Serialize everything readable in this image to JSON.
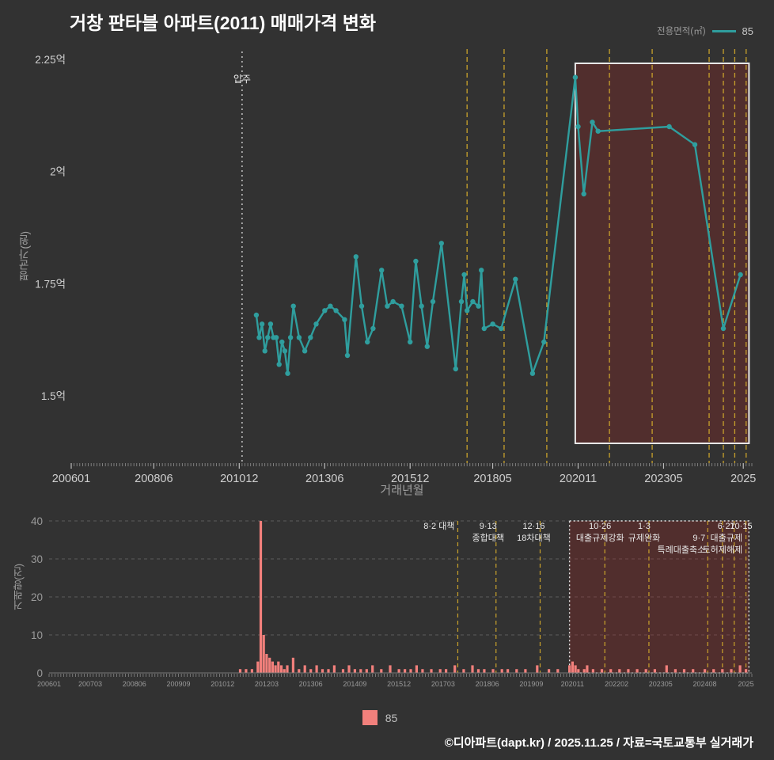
{
  "title": "거창 판타블 아파트(2011) 매매가격 변화",
  "legend": {
    "area_label": "전용면적(㎡)",
    "series": "85"
  },
  "footer": {
    "credit": "©디아파트(dapt.kr) / 2025.11.25 / 자료=국토교통부 실거래가"
  },
  "colors": {
    "background": "#323232",
    "accent_teal": "#2f9e9e",
    "bar_salmon": "#f2807c",
    "policy_line": "#c9a22b",
    "highlight_fill": "rgba(150,40,38,0.32)",
    "highlight_border": "#e8e8e8",
    "move_in_line": "#e0e0e0",
    "axis_text": "#cfcfcf",
    "grid": "#5c5c5c"
  },
  "chart_data": [
    {
      "type": "line",
      "title": "거창 판타블 아파트(2011) 매매가격 변화",
      "xlabel": "거래년월",
      "ylabel": "평균가(원)",
      "x_range_months": [
        "2006-01",
        "2025-12"
      ],
      "ylim": [
        1.35,
        2.28
      ],
      "grid": false,
      "legend_position": "top-right",
      "y_ticks": [
        {
          "label": "2.25억",
          "value": 2.25
        },
        {
          "label": "2억",
          "value": 2.0
        },
        {
          "label": "1.75억",
          "value": 1.75
        },
        {
          "label": "1.5억",
          "value": 1.5
        }
      ],
      "x_ticks": [
        {
          "label": "200601",
          "month": "2006-01"
        },
        {
          "label": "200806",
          "month": "2008-06"
        },
        {
          "label": "201012",
          "month": "2010-12"
        },
        {
          "label": "201306",
          "month": "2013-06"
        },
        {
          "label": "201512",
          "month": "2015-12"
        },
        {
          "label": "201805",
          "month": "2018-05"
        },
        {
          "label": "202011",
          "month": "2020-11"
        },
        {
          "label": "202305",
          "month": "2023-05"
        },
        {
          "label": "2025",
          "month": "2025-09"
        }
      ],
      "move_in_marker": {
        "month": "2011-01",
        "label": "입주"
      },
      "policy_lines": [
        "2017-08",
        "2018-09",
        "2019-12",
        "2021-10",
        "2023-01",
        "2024-09",
        "2025-02",
        "2025-06",
        "2025-10"
      ],
      "highlight_range": [
        "2020-10",
        "2025-11"
      ],
      "series": [
        {
          "name": "85",
          "color": "#2f9e9e",
          "points": [
            [
              "2011-06",
              1.68
            ],
            [
              "2011-07",
              1.63
            ],
            [
              "2011-08",
              1.66
            ],
            [
              "2011-09",
              1.6
            ],
            [
              "2011-10",
              1.63
            ],
            [
              "2011-11",
              1.66
            ],
            [
              "2011-12",
              1.63
            ],
            [
              "2012-01",
              1.63
            ],
            [
              "2012-02",
              1.57
            ],
            [
              "2012-03",
              1.62
            ],
            [
              "2012-04",
              1.6
            ],
            [
              "2012-05",
              1.55
            ],
            [
              "2012-06",
              1.63
            ],
            [
              "2012-07",
              1.7
            ],
            [
              "2012-09",
              1.63
            ],
            [
              "2012-11",
              1.6
            ],
            [
              "2013-01",
              1.63
            ],
            [
              "2013-03",
              1.66
            ],
            [
              "2013-06",
              1.69
            ],
            [
              "2013-08",
              1.7
            ],
            [
              "2013-10",
              1.69
            ],
            [
              "2014-01",
              1.67
            ],
            [
              "2014-02",
              1.59
            ],
            [
              "2014-05",
              1.81
            ],
            [
              "2014-07",
              1.7
            ],
            [
              "2014-09",
              1.62
            ],
            [
              "2014-11",
              1.65
            ],
            [
              "2015-02",
              1.78
            ],
            [
              "2015-04",
              1.7
            ],
            [
              "2015-06",
              1.71
            ],
            [
              "2015-09",
              1.7
            ],
            [
              "2015-12",
              1.62
            ],
            [
              "2016-02",
              1.8
            ],
            [
              "2016-04",
              1.7
            ],
            [
              "2016-06",
              1.61
            ],
            [
              "2016-08",
              1.71
            ],
            [
              "2016-11",
              1.84
            ],
            [
              "2017-04",
              1.56
            ],
            [
              "2017-06",
              1.71
            ],
            [
              "2017-07",
              1.77
            ],
            [
              "2017-08",
              1.69
            ],
            [
              "2017-10",
              1.71
            ],
            [
              "2017-12",
              1.7
            ],
            [
              "2018-01",
              1.78
            ],
            [
              "2018-02",
              1.65
            ],
            [
              "2018-05",
              1.66
            ],
            [
              "2018-08",
              1.65
            ],
            [
              "2019-01",
              1.76
            ],
            [
              "2019-07",
              1.55
            ],
            [
              "2019-11",
              1.62
            ],
            [
              "2020-10",
              2.21
            ],
            [
              "2020-11",
              2.1
            ],
            [
              "2021-01",
              1.95
            ],
            [
              "2021-04",
              2.11
            ],
            [
              "2021-06",
              2.09
            ],
            [
              "2023-07",
              2.1
            ],
            [
              "2024-04",
              2.06
            ],
            [
              "2025-02",
              1.65
            ],
            [
              "2025-08",
              1.77
            ]
          ]
        }
      ]
    },
    {
      "type": "bar",
      "xlabel": "",
      "ylabel": "거래량(건)",
      "ylim": [
        0,
        40
      ],
      "grid": true,
      "y_ticks": [
        0,
        10,
        20,
        30,
        40
      ],
      "x_ticks": [
        {
          "label": "200601",
          "month": "2006-01"
        },
        {
          "label": "200703",
          "month": "2007-03"
        },
        {
          "label": "200806",
          "month": "2008-06"
        },
        {
          "label": "200909",
          "month": "2009-09"
        },
        {
          "label": "201012",
          "month": "2010-12"
        },
        {
          "label": "201203",
          "month": "2012-03"
        },
        {
          "label": "201306",
          "month": "2013-06"
        },
        {
          "label": "201409",
          "month": "2014-09"
        },
        {
          "label": "201512",
          "month": "2015-12"
        },
        {
          "label": "201703",
          "month": "2017-03"
        },
        {
          "label": "201806",
          "month": "2018-06"
        },
        {
          "label": "201909",
          "month": "2019-09"
        },
        {
          "label": "202011",
          "month": "2020-11"
        },
        {
          "label": "202202",
          "month": "2022-02"
        },
        {
          "label": "202305",
          "month": "2023-05"
        },
        {
          "label": "202408",
          "month": "2024-08"
        },
        {
          "label": "2025",
          "month": "2025-10"
        }
      ],
      "policy_lines": [
        "2017-08",
        "2018-09",
        "2019-12",
        "2021-10",
        "2023-01",
        "2024-09",
        "2025-02",
        "2025-06",
        "2025-10"
      ],
      "highlight_range": [
        "2020-10",
        "2025-11"
      ],
      "annotations": [
        {
          "month": "2017-08",
          "anchor": "end",
          "dx": -4,
          "texts": [
            [
              0,
              "8·2 대책"
            ]
          ]
        },
        {
          "month": "2018-09",
          "anchor": "middle",
          "dx": -10,
          "texts": [
            [
              0,
              "9·13"
            ],
            [
              1,
              "종합대책"
            ]
          ]
        },
        {
          "month": "2019-12",
          "anchor": "middle",
          "dx": -8,
          "texts": [
            [
              0,
              "12·16"
            ],
            [
              1,
              "18차대책"
            ]
          ]
        },
        {
          "month": "2021-10",
          "anchor": "middle",
          "dx": -6,
          "texts": [
            [
              0,
              "10·26"
            ],
            [
              1,
              "대출규제강화"
            ]
          ]
        },
        {
          "month": "2023-01",
          "anchor": "middle",
          "dx": -6,
          "texts": [
            [
              0,
              "1·3"
            ],
            [
              1,
              "규제완화"
            ]
          ]
        },
        {
          "month": "2024-09",
          "anchor": "end",
          "dx": -3,
          "texts": [
            [
              1,
              "9·7"
            ],
            [
              2,
              "특례대출축소"
            ]
          ]
        },
        {
          "month": "2025-02",
          "anchor": "middle",
          "dx": 0,
          "texts": [
            [
              2,
              "토허제해제"
            ]
          ]
        },
        {
          "month": "2025-06",
          "anchor": "middle",
          "dx": -10,
          "texts": [
            [
              0,
              "6·27"
            ],
            [
              1,
              "대출규제"
            ]
          ]
        },
        {
          "month": "2025-10",
          "anchor": "end",
          "dx": 8,
          "texts": [
            [
              0,
              "10·15"
            ]
          ]
        }
      ],
      "series": [
        {
          "name": "85",
          "color": "#f2807c",
          "bars": [
            [
              "2011-06",
              1
            ],
            [
              "2011-08",
              1
            ],
            [
              "2011-10",
              1
            ],
            [
              "2011-12",
              3
            ],
            [
              "2012-01",
              40
            ],
            [
              "2012-02",
              10
            ],
            [
              "2012-03",
              5
            ],
            [
              "2012-04",
              4
            ],
            [
              "2012-05",
              3
            ],
            [
              "2012-06",
              2
            ],
            [
              "2012-07",
              3
            ],
            [
              "2012-08",
              2
            ],
            [
              "2012-09",
              1
            ],
            [
              "2012-10",
              2
            ],
            [
              "2012-12",
              4
            ],
            [
              "2013-02",
              1
            ],
            [
              "2013-04",
              2
            ],
            [
              "2013-06",
              1
            ],
            [
              "2013-08",
              2
            ],
            [
              "2013-10",
              1
            ],
            [
              "2013-12",
              1
            ],
            [
              "2014-02",
              2
            ],
            [
              "2014-05",
              1
            ],
            [
              "2014-07",
              2
            ],
            [
              "2014-09",
              1
            ],
            [
              "2014-11",
              1
            ],
            [
              "2015-01",
              1
            ],
            [
              "2015-03",
              2
            ],
            [
              "2015-06",
              1
            ],
            [
              "2015-09",
              2
            ],
            [
              "2015-12",
              1
            ],
            [
              "2016-02",
              1
            ],
            [
              "2016-04",
              1
            ],
            [
              "2016-06",
              2
            ],
            [
              "2016-08",
              1
            ],
            [
              "2016-11",
              1
            ],
            [
              "2017-02",
              1
            ],
            [
              "2017-04",
              1
            ],
            [
              "2017-07",
              2
            ],
            [
              "2017-10",
              1
            ],
            [
              "2018-01",
              2
            ],
            [
              "2018-03",
              1
            ],
            [
              "2018-05",
              1
            ],
            [
              "2018-08",
              1
            ],
            [
              "2018-11",
              1
            ],
            [
              "2019-01",
              1
            ],
            [
              "2019-04",
              1
            ],
            [
              "2019-07",
              1
            ],
            [
              "2019-11",
              2
            ],
            [
              "2020-03",
              1
            ],
            [
              "2020-06",
              1
            ],
            [
              "2020-10",
              2
            ],
            [
              "2020-11",
              3
            ],
            [
              "2020-12",
              2
            ],
            [
              "2021-01",
              1
            ],
            [
              "2021-03",
              1
            ],
            [
              "2021-04",
              2
            ],
            [
              "2021-06",
              1
            ],
            [
              "2021-09",
              1
            ],
            [
              "2021-12",
              1
            ],
            [
              "2022-03",
              1
            ],
            [
              "2022-06",
              1
            ],
            [
              "2022-09",
              1
            ],
            [
              "2022-12",
              1
            ],
            [
              "2023-03",
              1
            ],
            [
              "2023-07",
              2
            ],
            [
              "2023-10",
              1
            ],
            [
              "2024-01",
              1
            ],
            [
              "2024-04",
              1
            ],
            [
              "2024-08",
              1
            ],
            [
              "2024-11",
              1
            ],
            [
              "2025-02",
              1
            ],
            [
              "2025-05",
              1
            ],
            [
              "2025-08",
              2
            ],
            [
              "2025-10",
              1
            ]
          ]
        }
      ]
    }
  ]
}
